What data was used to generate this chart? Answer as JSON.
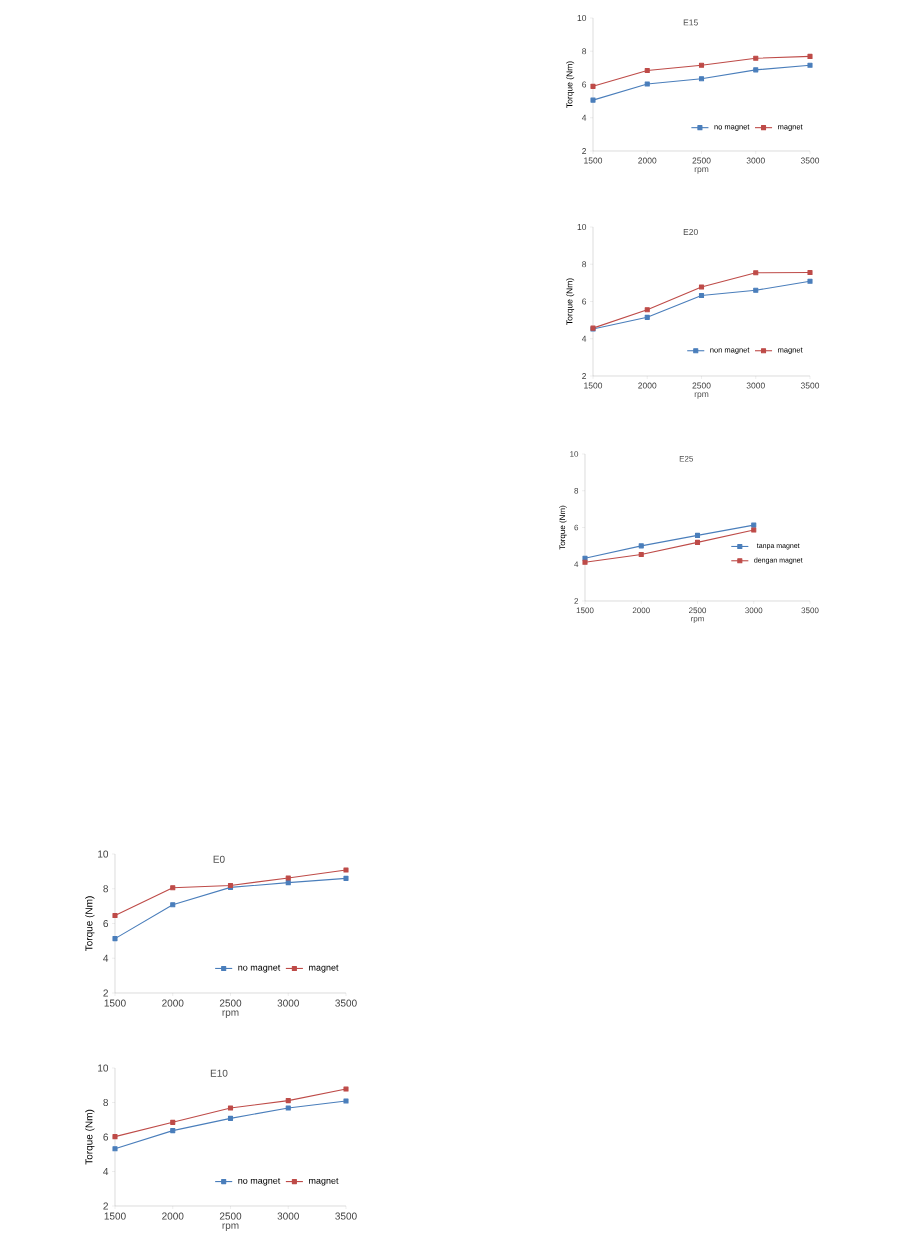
{
  "chart_data": [
    {
      "type": "line",
      "title": "E15",
      "xlabel": "rpm",
      "ylabel": "Torque (Nm)",
      "x": [
        1500,
        2000,
        2500,
        3000,
        3500
      ],
      "xlim": [
        1500,
        3500
      ],
      "xticks": [
        1500,
        2000,
        2500,
        3000,
        3500
      ],
      "ylim": [
        2,
        10
      ],
      "yticks": [
        2,
        4,
        6,
        8,
        10
      ],
      "legend": "bottom right",
      "marker": "square",
      "series": [
        {
          "name": "no magnet",
          "color": "#4a7ebb",
          "values": [
            5.06,
            6.03,
            6.35,
            6.88,
            7.16
          ]
        },
        {
          "name": "magnet",
          "color": "#be4b48",
          "values": [
            5.89,
            6.84,
            7.16,
            7.58,
            7.69
          ]
        }
      ]
    },
    {
      "type": "line",
      "title": "E20",
      "xlabel": "rpm",
      "ylabel": "Torque (Nm)",
      "x": [
        1500,
        2000,
        2500,
        3000,
        3500
      ],
      "xlim": [
        1500,
        3500
      ],
      "xticks": [
        1500,
        2000,
        2500,
        3000,
        3500
      ],
      "ylim": [
        2,
        10
      ],
      "yticks": [
        2,
        4,
        6,
        8,
        10
      ],
      "legend": "bottom right",
      "marker": "square",
      "series": [
        {
          "name": "non magnet",
          "color": "#4a7ebb",
          "values": [
            4.52,
            5.15,
            6.32,
            6.6,
            7.09
          ]
        },
        {
          "name": "magnet",
          "color": "#be4b48",
          "values": [
            4.57,
            5.56,
            6.78,
            7.54,
            7.56
          ]
        }
      ]
    },
    {
      "type": "line",
      "title": "E25",
      "xlabel": "rpm",
      "ylabel": "Torque (Nm)",
      "xlim": [
        1500,
        3500
      ],
      "xticks": [
        1500,
        2000,
        2500,
        3000,
        3500
      ],
      "ylim": [
        2,
        10
      ],
      "yticks": [
        2,
        4,
        6,
        8,
        10
      ],
      "legend": "right",
      "marker": "square",
      "series": [
        {
          "name": "tanpa magnet",
          "color": "#4a7ebb",
          "x": [
            1500,
            2000,
            2500,
            3000
          ],
          "values": [
            4.33,
            5.0,
            5.57,
            6.13
          ]
        },
        {
          "name": "dengan magnet",
          "color": "#be4b48",
          "x": [
            1500,
            2000,
            2500,
            3000
          ],
          "values": [
            4.11,
            4.53,
            5.19,
            5.86
          ]
        }
      ]
    },
    {
      "type": "line",
      "title": "E0",
      "xlabel": "rpm",
      "ylabel": "Torque (Nm)",
      "x": [
        1500,
        2000,
        2500,
        3000,
        3500
      ],
      "xlim": [
        1500,
        3500
      ],
      "xticks": [
        1500,
        2000,
        2500,
        3000,
        3500
      ],
      "ylim": [
        2,
        10
      ],
      "yticks": [
        2,
        4,
        6,
        8,
        10
      ],
      "legend": "bottom right",
      "marker": "square",
      "series": [
        {
          "name": "no magnet",
          "color": "#4a7ebb",
          "values": [
            5.13,
            7.08,
            8.08,
            8.35,
            8.6
          ]
        },
        {
          "name": "magnet",
          "color": "#be4b48",
          "values": [
            6.46,
            8.06,
            8.19,
            8.62,
            9.08
          ]
        }
      ]
    },
    {
      "type": "line",
      "title": "E10",
      "xlabel": "rpm",
      "ylabel": "Torque (Nm)",
      "x": [
        1500,
        2000,
        2500,
        3000,
        3500
      ],
      "xlim": [
        1500,
        3500
      ],
      "xticks": [
        1500,
        2000,
        2500,
        3000,
        3500
      ],
      "ylim": [
        2,
        10
      ],
      "yticks": [
        2,
        4,
        6,
        8,
        10
      ],
      "legend": "bottom right",
      "marker": "square",
      "series": [
        {
          "name": "no magnet",
          "color": "#4a7ebb",
          "values": [
            5.32,
            6.37,
            7.08,
            7.68,
            8.09
          ]
        },
        {
          "name": "magnet",
          "color": "#be4b48",
          "values": [
            6.02,
            6.85,
            7.68,
            8.11,
            8.78
          ]
        }
      ]
    }
  ]
}
